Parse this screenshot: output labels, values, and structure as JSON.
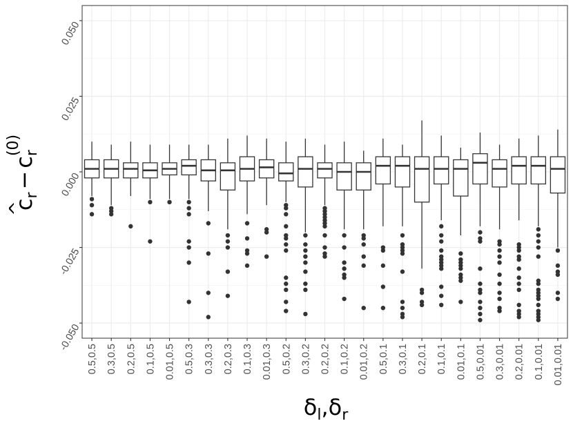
{
  "chart_data": {
    "type": "boxplot",
    "xlabel": "δl,δr",
    "ylabel": "ĉr − cr(0)",
    "xlabel_parts": {
      "sym": "δ",
      "sub1": "l",
      "sep": ",",
      "sym2": "δ",
      "sub2": "r"
    },
    "ylabel_parts": {
      "hat": "^",
      "base": "c",
      "sub": "r",
      "minus": "−",
      "base2": "c",
      "sub2": "r",
      "sup2": "(0)"
    },
    "ylim": [
      -0.055,
      0.055
    ],
    "yticks": [
      -0.05,
      -0.025,
      0.0,
      0.025,
      0.05
    ],
    "ytick_labels": [
      "-0.050",
      "-0.025",
      "0.000",
      "0.025",
      "0.050"
    ],
    "grid": true,
    "categories": [
      "0.5,0.5",
      "0.3,0.5",
      "0.2,0.5",
      "0.1,0.5",
      "0.01,0.5",
      "0.5,0.3",
      "0.3,0.3",
      "0.2,0.3",
      "0.1,0.3",
      "0.01,0.3",
      "0.5,0.2",
      "0.3,0.2",
      "0.2,0.2",
      "0.1,0.2",
      "0.01,0.2",
      "0.5,0.1",
      "0.3,0.1",
      "0.2,0.1",
      "0.1,0.1",
      "0.01,0.1",
      "0.5,0.01",
      "0.3,0.01",
      "0.2,0.01",
      "0.1,0.01",
      "0.01,0.01"
    ],
    "boxes": [
      {
        "q1": -0.002,
        "median": 0.001,
        "q3": 0.004,
        "whislo": -0.008,
        "whishi": 0.01,
        "outliers": [
          -0.009,
          -0.011,
          -0.014
        ]
      },
      {
        "q1": -0.002,
        "median": 0.001,
        "q3": 0.004,
        "whislo": -0.011,
        "whishi": 0.009,
        "outliers": [
          -0.012,
          -0.013,
          -0.014
        ]
      },
      {
        "q1": -0.002,
        "median": 0.001,
        "q3": 0.003,
        "whislo": -0.008,
        "whishi": 0.01,
        "outliers": [
          -0.018
        ]
      },
      {
        "q1": -0.002,
        "median": 0.0005,
        "q3": 0.003,
        "whislo": -0.009,
        "whishi": 0.009,
        "outliers": [
          -0.01,
          -0.023
        ]
      },
      {
        "q1": -0.001,
        "median": 0.001,
        "q3": 0.003,
        "whislo": -0.009,
        "whishi": 0.009,
        "outliers": [
          -0.01
        ]
      },
      {
        "q1": -0.001,
        "median": 0.002,
        "q3": 0.004,
        "whislo": -0.009,
        "whishi": 0.009,
        "outliers": [
          -0.01,
          -0.012,
          -0.014,
          -0.023,
          -0.025,
          -0.03,
          -0.043
        ]
      },
      {
        "q1": -0.003,
        "median": 0.0005,
        "q3": 0.004,
        "whislo": -0.013,
        "whishi": 0.009,
        "outliers": [
          -0.017,
          -0.027,
          -0.04,
          -0.048
        ]
      },
      {
        "q1": -0.006,
        "median": 0.0005,
        "q3": 0.003,
        "whislo": -0.019,
        "whishi": 0.011,
        "outliers": [
          -0.021,
          -0.023,
          -0.025,
          -0.033,
          -0.041
        ]
      },
      {
        "q1": -0.003,
        "median": 0.001,
        "q3": 0.005,
        "whislo": -0.014,
        "whishi": 0.012,
        "outliers": [
          -0.017,
          -0.022,
          -0.026,
          -0.027,
          -0.031
        ]
      },
      {
        "q1": -0.002,
        "median": 0.0015,
        "q3": 0.004,
        "whislo": -0.011,
        "whishi": 0.011,
        "outliers": [
          -0.019,
          -0.02,
          -0.028
        ]
      },
      {
        "q1": -0.003,
        "median": -0.0005,
        "q3": 0.003,
        "whislo": -0.01,
        "whishi": 0.01,
        "outliers": [
          -0.011,
          -0.012,
          -0.014,
          -0.018,
          -0.021,
          -0.022,
          -0.024,
          -0.026,
          -0.035,
          -0.037,
          -0.039,
          -0.043,
          -0.046
        ]
      },
      {
        "q1": -0.005,
        "median": 0.001,
        "q3": 0.005,
        "whislo": -0.02,
        "whishi": 0.011,
        "outliers": [
          -0.021,
          -0.024,
          -0.026,
          -0.028,
          -0.03,
          -0.033,
          -0.037,
          -0.039,
          -0.047
        ]
      },
      {
        "q1": -0.002,
        "median": 0.001,
        "q3": 0.003,
        "whislo": -0.011,
        "whishi": 0.009,
        "outliers": [
          -0.012,
          -0.013,
          -0.014,
          -0.015,
          -0.016,
          -0.017,
          -0.018,
          -0.021,
          -0.025,
          -0.027,
          -0.028
        ]
      },
      {
        "q1": -0.006,
        "median": 0.0,
        "q3": 0.003,
        "whislo": -0.019,
        "whishi": 0.01,
        "outliers": [
          -0.021,
          -0.025,
          -0.03,
          -0.032,
          -0.034,
          -0.035,
          -0.042
        ]
      },
      {
        "q1": -0.006,
        "median": 0.0,
        "q3": 0.003,
        "whislo": -0.019,
        "whishi": 0.007,
        "outliers": [
          -0.021,
          -0.022,
          -0.024,
          -0.028,
          -0.031,
          -0.045
        ]
      },
      {
        "q1": -0.004,
        "median": 0.002,
        "q3": 0.005,
        "whislo": -0.018,
        "whishi": 0.011,
        "outliers": [
          -0.025,
          -0.026,
          -0.031,
          -0.038,
          -0.045
        ]
      },
      {
        "q1": -0.005,
        "median": 0.002,
        "q3": 0.005,
        "whislo": -0.018,
        "whishi": 0.009,
        "outliers": [
          -0.021,
          -0.024,
          -0.025,
          -0.026,
          -0.027,
          -0.033,
          -0.043,
          -0.045,
          -0.047,
          -0.048
        ]
      },
      {
        "q1": -0.01,
        "median": 0.001,
        "q3": 0.005,
        "whislo": -0.032,
        "whishi": 0.017,
        "outliers": [
          -0.039,
          -0.04,
          -0.043,
          -0.044
        ]
      },
      {
        "q1": -0.004,
        "median": 0.001,
        "q3": 0.005,
        "whislo": -0.016,
        "whishi": 0.012,
        "outliers": [
          -0.018,
          -0.021,
          -0.023,
          -0.026,
          -0.028,
          -0.029,
          -0.03,
          -0.031,
          -0.032,
          -0.038,
          -0.041,
          -0.044
        ]
      },
      {
        "q1": -0.008,
        "median": 0.001,
        "q3": 0.004,
        "whislo": -0.021,
        "whishi": 0.008,
        "outliers": [
          -0.027,
          -0.029,
          -0.03,
          -0.031,
          -0.032,
          -0.034,
          -0.035,
          -0.036,
          -0.043
        ]
      },
      {
        "q1": -0.004,
        "median": 0.003,
        "q3": 0.006,
        "whislo": -0.018,
        "whishi": 0.013,
        "outliers": [
          -0.02,
          -0.022,
          -0.023,
          -0.032,
          -0.037,
          -0.039,
          -0.04,
          -0.043,
          -0.045,
          -0.047,
          -0.049
        ]
      },
      {
        "q1": -0.005,
        "median": 0.001,
        "q3": 0.004,
        "whislo": -0.019,
        "whishi": 0.009,
        "outliers": [
          -0.023,
          -0.024,
          -0.026,
          -0.028,
          -0.03,
          -0.034,
          -0.037,
          -0.04,
          -0.042,
          -0.045,
          -0.046
        ]
      },
      {
        "q1": -0.004,
        "median": 0.002,
        "q3": 0.005,
        "whislo": -0.016,
        "whishi": 0.011,
        "outliers": [
          -0.024,
          -0.025,
          -0.026,
          -0.028,
          -0.029,
          -0.032,
          -0.035,
          -0.037,
          -0.039,
          -0.044,
          -0.046,
          -0.047,
          -0.048
        ]
      },
      {
        "q1": -0.004,
        "median": 0.002,
        "q3": 0.005,
        "whislo": -0.018,
        "whishi": 0.012,
        "outliers": [
          -0.019,
          -0.021,
          -0.023,
          -0.025,
          -0.028,
          -0.036,
          -0.037,
          -0.039,
          -0.04,
          -0.041,
          -0.042,
          -0.044,
          -0.046,
          -0.047,
          -0.048,
          -0.049
        ]
      },
      {
        "q1": -0.007,
        "median": 0.001,
        "q3": 0.005,
        "whislo": -0.025,
        "whishi": 0.014,
        "outliers": [
          -0.026,
          -0.031,
          -0.033,
          -0.034,
          -0.04,
          -0.042
        ]
      }
    ]
  }
}
